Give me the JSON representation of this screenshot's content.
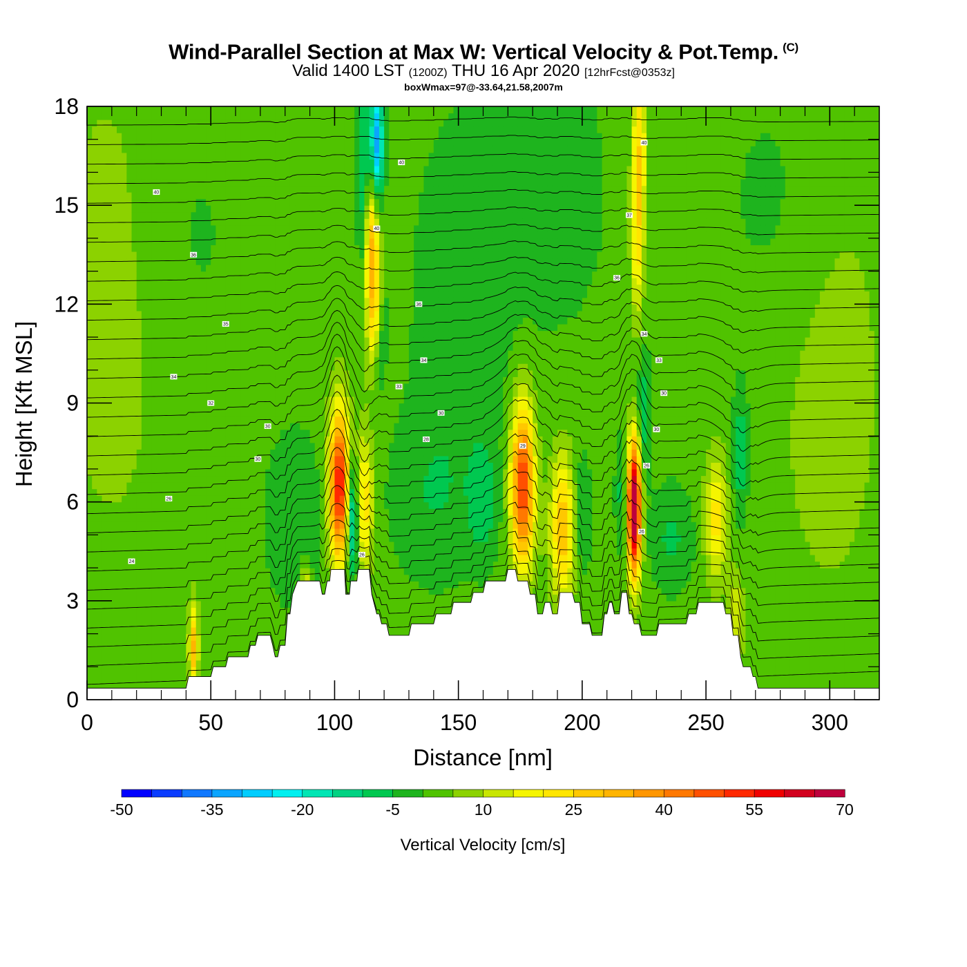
{
  "header": {
    "title": "Wind-Parallel Section at Max W: Vertical Velocity & Pot.Temp.",
    "copyright": "(C)",
    "valid_prefix": "Valid 1400 LST",
    "valid_utc": "(1200Z)",
    "valid_date": "THU 16 Apr 2020",
    "forecast": "[12hrFcst@0353z]",
    "box_info": "boxWmax=97@-33.64,21.58,2007m"
  },
  "chart_data": {
    "type": "heatmap",
    "xlabel": "Distance [nm]",
    "ylabel": "Height [Kft MSL]",
    "xlim": [
      0,
      320
    ],
    "ylim": [
      0,
      18
    ],
    "x_ticks": [
      "0",
      "50",
      "100",
      "150",
      "200",
      "250",
      "300"
    ],
    "y_ticks": [
      "0",
      "3",
      "6",
      "9",
      "12",
      "15",
      "18"
    ],
    "background_w": 2,
    "terrain": [
      [
        0,
        0.35
      ],
      [
        40,
        0.35
      ],
      [
        41,
        0.7
      ],
      [
        50,
        0.7
      ],
      [
        51,
        1.0
      ],
      [
        56,
        1.0
      ],
      [
        57,
        1.3
      ],
      [
        65,
        1.3
      ],
      [
        66,
        1.65
      ],
      [
        68,
        1.65
      ],
      [
        69,
        1.95
      ],
      [
        74,
        1.95
      ],
      [
        75,
        1.65
      ],
      [
        76,
        1.3
      ],
      [
        77,
        1.3
      ],
      [
        78,
        1.65
      ],
      [
        80,
        1.65
      ],
      [
        81,
        2.6
      ],
      [
        82,
        2.6
      ],
      [
        83,
        3.2
      ],
      [
        85,
        3.6
      ],
      [
        94,
        3.6
      ],
      [
        95,
        3.2
      ],
      [
        96,
        3.2
      ],
      [
        97,
        3.6
      ],
      [
        98,
        3.6
      ],
      [
        98.5,
        3.95
      ],
      [
        104,
        3.95
      ],
      [
        104.5,
        3.2
      ],
      [
        106,
        3.2
      ],
      [
        106.5,
        3.6
      ],
      [
        109,
        3.6
      ],
      [
        109.5,
        3.95
      ],
      [
        114,
        3.95
      ],
      [
        115,
        3.2
      ],
      [
        117,
        2.6
      ],
      [
        118,
        2.6
      ],
      [
        119,
        2.3
      ],
      [
        121,
        2.3
      ],
      [
        122,
        1.95
      ],
      [
        130,
        1.95
      ],
      [
        131,
        2.3
      ],
      [
        140,
        2.3
      ],
      [
        141,
        2.6
      ],
      [
        147,
        2.6
      ],
      [
        148,
        2.95
      ],
      [
        155,
        2.95
      ],
      [
        156,
        3.25
      ],
      [
        160,
        3.25
      ],
      [
        161,
        3.6
      ],
      [
        169,
        3.6
      ],
      [
        170,
        3.95
      ],
      [
        173,
        3.95
      ],
      [
        174,
        3.6
      ],
      [
        178,
        3.6
      ],
      [
        179,
        3.2
      ],
      [
        181,
        3.2
      ],
      [
        182,
        2.6
      ],
      [
        184,
        2.6
      ],
      [
        185,
        2.95
      ],
      [
        187,
        2.95
      ],
      [
        188,
        2.6
      ],
      [
        190,
        2.6
      ],
      [
        191,
        3.25
      ],
      [
        196,
        3.25
      ],
      [
        197,
        2.95
      ],
      [
        199,
        2.95
      ],
      [
        200,
        2.3
      ],
      [
        203,
        2.3
      ],
      [
        204,
        1.95
      ],
      [
        208,
        1.95
      ],
      [
        209,
        2.6
      ],
      [
        210,
        2.6
      ],
      [
        211,
        2.95
      ],
      [
        212,
        2.95
      ],
      [
        213,
        2.6
      ],
      [
        215,
        2.6
      ],
      [
        216,
        3.25
      ],
      [
        218,
        3.25
      ],
      [
        219,
        2.6
      ],
      [
        220,
        2.6
      ],
      [
        221,
        2.3
      ],
      [
        223,
        2.3
      ],
      [
        224,
        1.95
      ],
      [
        230,
        1.95
      ],
      [
        231,
        2.3
      ],
      [
        242,
        2.3
      ],
      [
        243,
        2.6
      ],
      [
        246,
        2.6
      ],
      [
        247,
        2.95
      ],
      [
        257,
        2.95
      ],
      [
        258,
        2.6
      ],
      [
        260,
        2.6
      ],
      [
        261,
        1.95
      ],
      [
        263,
        1.95
      ],
      [
        264,
        1.3
      ],
      [
        265,
        1.0
      ],
      [
        268,
        1.0
      ],
      [
        269,
        0.7
      ],
      [
        270,
        0.7
      ],
      [
        271,
        0.35
      ],
      [
        320,
        0.35
      ]
    ],
    "features": [
      {
        "x": 102,
        "y": 6.5,
        "sx": 3.0,
        "sy": 1.6,
        "w": 55
      },
      {
        "x": 107,
        "y": 5.6,
        "sx": 1.8,
        "sy": 1.3,
        "w": -28
      },
      {
        "x": 112,
        "y": 6.0,
        "sx": 2.3,
        "sy": 1.5,
        "w": 22
      },
      {
        "x": 117,
        "y": 10.0,
        "sx": 2.0,
        "sy": 1.4,
        "w": -14,
        "slant": 0.9
      },
      {
        "x": 117,
        "y": 16.8,
        "sx": 1.8,
        "sy": 1.3,
        "w": -38
      },
      {
        "x": 112,
        "y": 16.0,
        "sx": 1.8,
        "sy": 2.2,
        "w": -16
      },
      {
        "x": 116,
        "y": 12.2,
        "sx": 2.0,
        "sy": 2.6,
        "w": 24
      },
      {
        "x": 114,
        "y": 14.0,
        "sx": 1.8,
        "sy": 1.6,
        "w": 18
      },
      {
        "x": 84,
        "y": 5.5,
        "sx": 8.0,
        "sy": 1.8,
        "w": -7
      },
      {
        "x": 139,
        "y": 6.2,
        "sx": 12.0,
        "sy": 1.8,
        "w": -6
      },
      {
        "x": 160,
        "y": 6.0,
        "sx": 4.0,
        "sy": 1.2,
        "w": -9
      },
      {
        "x": 152,
        "y": 12.0,
        "sx": 14.0,
        "sy": 4.0,
        "w": -6
      },
      {
        "x": 176,
        "y": 6.5,
        "sx": 3.3,
        "sy": 1.7,
        "w": 50
      },
      {
        "x": 192,
        "y": 5.2,
        "sx": 3.3,
        "sy": 1.5,
        "w": 28
      },
      {
        "x": 200,
        "y": 5.6,
        "sx": 2.5,
        "sy": 1.2,
        "w": -8
      },
      {
        "x": 221,
        "y": 5.8,
        "sx": 1.9,
        "sy": 1.4,
        "w": 75
      },
      {
        "x": 216,
        "y": 6.2,
        "sx": 1.8,
        "sy": 1.2,
        "w": -9
      },
      {
        "x": 225,
        "y": 8.6,
        "sx": 1.8,
        "sy": 1.3,
        "w": -12
      },
      {
        "x": 223,
        "y": 16.6,
        "sx": 2.0,
        "sy": 2.2,
        "w": 22
      },
      {
        "x": 222,
        "y": 13.6,
        "sx": 1.6,
        "sy": 1.6,
        "w": 14
      },
      {
        "x": 236,
        "y": 4.9,
        "sx": 6.0,
        "sy": 1.1,
        "w": -8
      },
      {
        "x": 254,
        "y": 5.5,
        "sx": 3.0,
        "sy": 1.3,
        "w": 20
      },
      {
        "x": 264,
        "y": 7.5,
        "sx": 2.2,
        "sy": 1.4,
        "w": -11
      },
      {
        "x": 262,
        "y": 2.4,
        "sx": 2.0,
        "sy": 1.0,
        "w": 14
      },
      {
        "x": 43,
        "y": 1.6,
        "sx": 1.3,
        "sy": 0.9,
        "w": 28
      },
      {
        "x": 88,
        "y": 3.3,
        "sx": 1.5,
        "sy": 0.6,
        "w": 18
      },
      {
        "x": 10,
        "y": 12.0,
        "sx": 18.0,
        "sy": 6.0,
        "w": 5
      },
      {
        "x": 300,
        "y": 10.0,
        "sx": 18.0,
        "sy": 6.0,
        "w": 5
      },
      {
        "x": 40,
        "y": 14.0,
        "sx": 16.0,
        "sy": 3.0,
        "w": -3
      },
      {
        "x": 280,
        "y": 15.0,
        "sx": 16.0,
        "sy": 3.0,
        "w": -4
      },
      {
        "x": 190,
        "y": 15.5,
        "sx": 14.0,
        "sy": 3.0,
        "w": -5
      }
    ],
    "contour_bumps": [
      {
        "x": 101,
        "amp": 1.3,
        "sx": 3.5
      },
      {
        "x": 112,
        "amp": -0.9,
        "sx": 2.5
      },
      {
        "x": 176,
        "amp": 1.0,
        "sx": 7.0
      },
      {
        "x": 221,
        "amp": 1.2,
        "sx": 3.5
      },
      {
        "x": 262,
        "amp": -0.6,
        "sx": 6.0
      }
    ],
    "contour_levels": 34,
    "contour_labels": [
      {
        "x": 28,
        "y": 15.4,
        "text": "40"
      },
      {
        "x": 127,
        "y": 16.3,
        "text": "40"
      },
      {
        "x": 225,
        "y": 16.9,
        "text": "40"
      },
      {
        "x": 117,
        "y": 14.3,
        "text": "40"
      },
      {
        "x": 219,
        "y": 14.7,
        "text": "37"
      },
      {
        "x": 43,
        "y": 13.5,
        "text": "36"
      },
      {
        "x": 214,
        "y": 12.8,
        "text": "36"
      },
      {
        "x": 134,
        "y": 12.0,
        "text": "36"
      },
      {
        "x": 56,
        "y": 11.4,
        "text": "35"
      },
      {
        "x": 225,
        "y": 11.1,
        "text": "34"
      },
      {
        "x": 136,
        "y": 10.3,
        "text": "34"
      },
      {
        "x": 231,
        "y": 10.3,
        "text": "33"
      },
      {
        "x": 35,
        "y": 9.8,
        "text": "34"
      },
      {
        "x": 126,
        "y": 9.5,
        "text": "33"
      },
      {
        "x": 233,
        "y": 9.3,
        "text": "30"
      },
      {
        "x": 50,
        "y": 9.0,
        "text": "32"
      },
      {
        "x": 143,
        "y": 8.7,
        "text": "30"
      },
      {
        "x": 73,
        "y": 8.3,
        "text": "30"
      },
      {
        "x": 230,
        "y": 8.2,
        "text": "30"
      },
      {
        "x": 137,
        "y": 7.9,
        "text": "28"
      },
      {
        "x": 176,
        "y": 7.7,
        "text": "29"
      },
      {
        "x": 69,
        "y": 7.3,
        "text": "30"
      },
      {
        "x": 226,
        "y": 7.1,
        "text": "26"
      },
      {
        "x": 33,
        "y": 6.1,
        "text": "26"
      },
      {
        "x": 224,
        "y": 5.1,
        "text": "26"
      },
      {
        "x": 111,
        "y": 4.4,
        "text": "26"
      },
      {
        "x": 18,
        "y": 4.2,
        "text": "24"
      }
    ],
    "colorbar": {
      "title": "Vertical Velocity [cm/s]",
      "min": -50,
      "step": 5,
      "labels": [
        "-50",
        "-35",
        "-20",
        "-5",
        "10",
        "25",
        "40",
        "55",
        "70"
      ],
      "colors": [
        "#0000ff",
        "#0a3cff",
        "#0f78ff",
        "#0aa5ff",
        "#00cdff",
        "#00f0f0",
        "#00e6b4",
        "#00d282",
        "#00c850",
        "#1eb41e",
        "#50c300",
        "#8cd200",
        "#c8e600",
        "#f5f500",
        "#ffe600",
        "#ffc800",
        "#ffb400",
        "#ff9600",
        "#ff7800",
        "#ff5000",
        "#ff2800",
        "#f00000",
        "#d2001e",
        "#be003c"
      ]
    }
  }
}
